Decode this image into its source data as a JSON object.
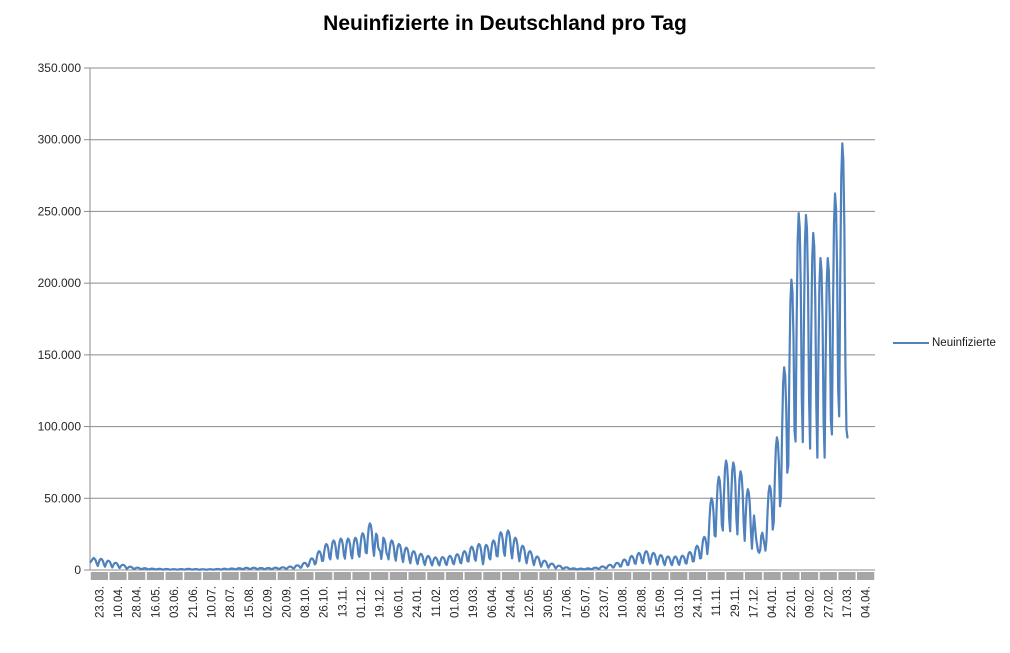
{
  "title": "Neuinfizierte in Deutschland pro Tag",
  "legend": {
    "series_label": "Neuinfizierte"
  },
  "colors": {
    "series": "#4F81BD",
    "gridline": "#8C8C8C",
    "axis_line": "#8C8C8C",
    "axis_band": "#A6A6A6",
    "tick_text": "#262626",
    "title_text": "#000000"
  },
  "chart_data": {
    "type": "line",
    "title": "Neuinfizierte in Deutschland pro Tag",
    "xlabel": "",
    "ylabel": "",
    "ylim": [
      0,
      350000
    ],
    "y_tick_step": 50000,
    "y_tick_labels": [
      "0",
      "50.000",
      "100.000",
      "150.000",
      "200.000",
      "250.000",
      "300.000",
      "350.000"
    ],
    "grid": "horizontal",
    "legend_position": "right",
    "x_tick_interval": 18,
    "x_total_categories": 756,
    "x_tick_labels": [
      "23.03.",
      "10.04.",
      "28.04.",
      "16.05.",
      "03.06.",
      "21.06.",
      "10.07.",
      "28.07.",
      "15.08.",
      "02.09.",
      "20.09.",
      "08.10.",
      "26.10.",
      "13.11.",
      "01.12.",
      "19.12.",
      "06.01.",
      "24.01.",
      "11.02.",
      "01.03.",
      "19.03.",
      "06.04.",
      "24.04.",
      "12.05.",
      "30.05.",
      "17.06.",
      "05.07.",
      "23.07.",
      "10.08.",
      "28.08.",
      "15.09.",
      "03.10.",
      "24.10.",
      "11.11.",
      "29.11.",
      "17.12.",
      "04.01.",
      "22.01.",
      "09.02.",
      "27.02.",
      "17.03.",
      "04.04."
    ],
    "series": [
      {
        "name": "Neuinfizierte",
        "values": [
          5500,
          6500,
          7600,
          8400,
          7800,
          6600,
          4400,
          2800,
          5300,
          7100,
          7800,
          7400,
          6200,
          3700,
          2300,
          4400,
          6000,
          6500,
          6200,
          5200,
          3100,
          1800,
          3400,
          4600,
          5000,
          4800,
          4000,
          2400,
          1300,
          2500,
          3300,
          3600,
          3500,
          2900,
          1700,
          800,
          1500,
          2100,
          2300,
          2200,
          1800,
          1100,
          600,
          1100,
          1500,
          1600,
          1600,
          1300,
          800,
          450,
          850,
          1150,
          1250,
          1200,
          1000,
          600,
          340,
          640,
          860,
          940,
          900,
          750,
          450,
          290,
          550,
          750,
          810,
          780,
          650,
          390,
          250,
          470,
          630,
          690,
          660,
          550,
          330,
          200,
          380,
          520,
          560,
          540,
          450,
          270,
          230,
          430,
          580,
          630,
          600,
          500,
          300,
          290,
          550,
          750,
          810,
          780,
          650,
          390,
          230,
          430,
          580,
          630,
          600,
          500,
          300,
          180,
          340,
          460,
          500,
          480,
          400,
          240,
          190,
          360,
          480,
          530,
          500,
          420,
          250,
          250,
          470,
          630,
          690,
          660,
          550,
          330,
          320,
          600,
          810,
          880,
          840,
          700,
          420,
          380,
          720,
          980,
          1060,
          1020,
          850,
          510,
          450,
          850,
          1150,
          1250,
          1200,
          1000,
          600,
          540,
          1020,
          1380,
          1500,
          1440,
          1200,
          720,
          560,
          1060,
          1440,
          1560,
          1500,
          1250,
          750,
          500,
          940,
          1270,
          1380,
          1320,
          1100,
          660,
          500,
          940,
          1270,
          1380,
          1320,
          1100,
          660,
          590,
          1110,
          1500,
          1630,
          1560,
          1300,
          780,
          680,
          1280,
          1730,
          1880,
          1800,
          1500,
          900,
          860,
          1620,
          2190,
          2380,
          2280,
          1900,
          1140,
          1170,
          2210,
          2990,
          3250,
          3120,
          2600,
          1560,
          1800,
          3400,
          4600,
          5000,
          4800,
          4000,
          2400,
          2900,
          5500,
          7500,
          8100,
          7800,
          6500,
          3900,
          4700,
          8900,
          12100,
          13100,
          12600,
          10500,
          6300,
          6500,
          12300,
          16700,
          18100,
          17400,
          14500,
          8700,
          7400,
          14000,
          19000,
          20600,
          19800,
          16500,
          9900,
          7900,
          14900,
          20100,
          21900,
          21000,
          17500,
          10500,
          7900,
          14900,
          20100,
          21900,
          21000,
          17500,
          10500,
          8100,
          15300,
          20700,
          22500,
          21600,
          18000,
          10800,
          9200,
          17400,
          23600,
          25600,
          24600,
          20500,
          12300,
          11700,
          22100,
          29900,
          32500,
          31200,
          26000,
          15600,
          9900,
          18700,
          25300,
          24000,
          16000,
          14000,
          13200,
          7700,
          12900,
          22500,
          21300,
          18400,
          12000,
          10200,
          7400,
          14000,
          19000,
          20600,
          19800,
          16500,
          9900,
          6500,
          12300,
          16700,
          18100,
          17400,
          14500,
          8700,
          5600,
          10600,
          14400,
          15600,
          15000,
          12500,
          7500,
          4700,
          8900,
          12100,
          13100,
          12600,
          10500,
          6300,
          4100,
          7700,
          10400,
          11300,
          10800,
          9000,
          5400,
          3500,
          6600,
          9000,
          9800,
          9400,
          7800,
          4700,
          3200,
          6000,
          8100,
          8800,
          8400,
          7000,
          4200,
          3200,
          6100,
          8300,
          9000,
          8600,
          7200,
          4300,
          3500,
          6600,
          9000,
          9800,
          9400,
          7800,
          4700,
          4000,
          7500,
          10100,
          11000,
          10600,
          8800,
          5300,
          4700,
          8900,
          12100,
          13100,
          12600,
          10500,
          6300,
          5900,
          11100,
          15000,
          16300,
          15600,
          13000,
          7800,
          6500,
          12300,
          16700,
          18100,
          17400,
          14500,
          8700,
          4000,
          9000,
          16100,
          17500,
          16800,
          14000,
          8400,
          7400,
          14000,
          19000,
          20600,
          19800,
          16500,
          9900,
          9500,
          17900,
          24200,
          26300,
          25200,
          21000,
          12600,
          9900,
          18700,
          25300,
          27500,
          26400,
          22000,
          13200,
          8100,
          15300,
          20700,
          22500,
          21600,
          18000,
          10800,
          6100,
          11500,
          15500,
          16900,
          16200,
          13500,
          8100,
          4700,
          8900,
          12100,
          13100,
          12600,
          10500,
          6300,
          3400,
          6400,
          8600,
          9400,
          9000,
          7500,
          4500,
          2300,
          4400,
          6000,
          6500,
          6200,
          5200,
          3100,
          1600,
          3100,
          4100,
          4500,
          4300,
          3600,
          2200,
          1100,
          2000,
          2800,
          3000,
          2900,
          2400,
          1400,
          680,
          1280,
          1730,
          1880,
          1800,
          1500,
          900,
          410,
          770,
          1040,
          1130,
          1080,
          900,
          540,
          340,
          640,
          860,
          940,
          900,
          750,
          450,
          410,
          770,
          1040,
          1130,
          1080,
          900,
          540,
          590,
          1110,
          1500,
          1630,
          1560,
          1300,
          780,
          900,
          1700,
          2300,
          2500,
          2400,
          2000,
          1200,
          1300,
          2500,
          3300,
          3600,
          3500,
          2900,
          1700,
          1800,
          3400,
          4600,
          5000,
          4800,
          4000,
          2400,
          2600,
          4900,
          6700,
          7300,
          7000,
          5800,
          3500,
          3500,
          6600,
          9000,
          9800,
          9400,
          7800,
          4700,
          4300,
          8100,
          10900,
          11900,
          11400,
          9500,
          5700,
          4700,
          8900,
          12100,
          13100,
          12600,
          10500,
          6300,
          4300,
          8100,
          10900,
          11900,
          11400,
          9500,
          5700,
          3700,
          7100,
          9500,
          10400,
          10000,
          8300,
          5000,
          3400,
          6400,
          8600,
          9400,
          9000,
          7500,
          4500,
          3400,
          6400,
          8600,
          9400,
          9000,
          7500,
          4500,
          3600,
          6800,
          9200,
          10000,
          9600,
          8000,
          4800,
          4500,
          8500,
          11500,
          12500,
          12000,
          10000,
          6000,
          6100,
          11500,
          15500,
          16900,
          16200,
          13500,
          8100,
          8300,
          15700,
          21300,
          23100,
          22200,
          18500,
          11100,
          18000,
          34000,
          46000,
          50000,
          48000,
          40000,
          24000,
          23400,
          44200,
          59800,
          65000,
          62400,
          52000,
          31200,
          27500,
          51900,
          70200,
          76300,
          73200,
          61000,
          36600,
          27000,
          51000,
          69000,
          75000,
          72000,
          60000,
          36000,
          24800,
          46800,
          63300,
          68800,
          66000,
          55000,
          33000,
          20300,
          38300,
          51800,
          56300,
          54000,
          45000,
          27000,
          14900,
          28100,
          38000,
          30000,
          22000,
          17000,
          13000,
          12000,
          14000,
          24000,
          26000,
          22000,
          18000,
          13500,
          21200,
          40000,
          54100,
          58800,
          56400,
          47000,
          28200,
          33300,
          62900,
          85100,
          92500,
          88800,
          74000,
          44400,
          50900,
          96100,
          129900,
          141300,
          135600,
          113000,
          67800,
          72900,
          137700,
          186300,
          202500,
          194400,
          162000,
          97200,
          89600,
          169200,
          228900,
          248800,
          238800,
          199000,
          119400,
          89100,
          168300,
          227700,
          247500,
          237600,
          198000,
          118800,
          84600,
          159800,
          216200,
          235000,
          225600,
          188000,
          112800,
          78300,
          147900,
          200100,
          217500,
          208800,
          174000,
          104400,
          78300,
          147900,
          200100,
          217500,
          208800,
          174000,
          104400,
          94500,
          178500,
          241500,
          262500,
          252000,
          210000,
          126000,
          107100,
          202300,
          273700,
          297500,
          285600,
          238000,
          142800,
          98000,
          92400
        ]
      }
    ]
  }
}
